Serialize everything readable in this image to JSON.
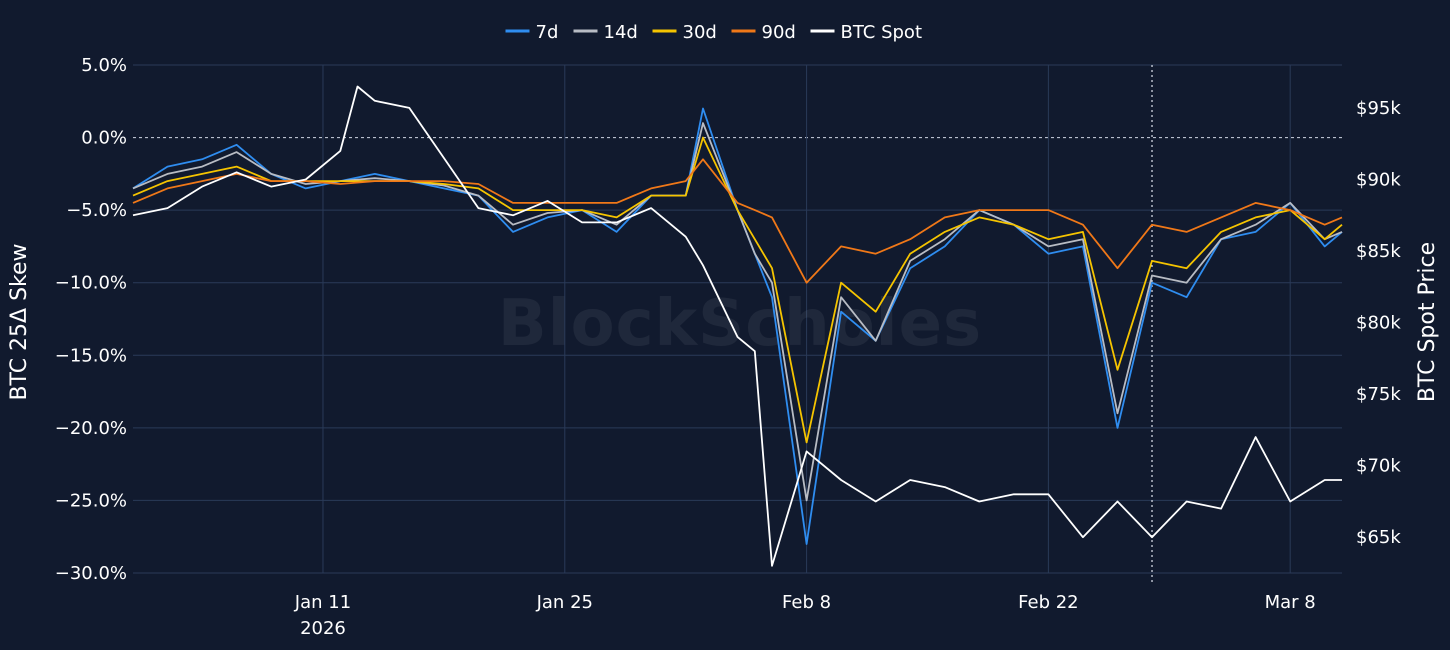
{
  "chart_data": {
    "type": "line",
    "watermark": "BlockScholes",
    "ylabel": "BTC 25Δ Skew",
    "y2label": "BTC Spot Price",
    "ylim": [
      -30,
      5
    ],
    "y2lim": [
      62500,
      98000
    ],
    "yticks": [
      "5.0%",
      "0.0%",
      "−5.0%",
      "−10.0%",
      "−15.0%",
      "−20.0%",
      "−25.0%",
      "−30.0%"
    ],
    "y2ticks": [
      "$95k",
      "$90k",
      "$85k",
      "$80k",
      "$75k",
      "$70k",
      "$65k"
    ],
    "xticks": [
      {
        "date": "2026-01-11",
        "label": "Jan 11",
        "sublabel": "2026"
      },
      {
        "date": "2026-01-25",
        "label": "Jan 25",
        "sublabel": ""
      },
      {
        "date": "2026-02-08",
        "label": "Feb 8",
        "sublabel": ""
      },
      {
        "date": "2026-02-22",
        "label": "Feb 22",
        "sublabel": ""
      },
      {
        "date": "2026-03-08",
        "label": "Mar 8",
        "sublabel": ""
      }
    ],
    "xrange": [
      "2025-12-31",
      "2026-03-11"
    ],
    "marker_date": "2026-02-28",
    "legend_position": "top-center",
    "grid": true,
    "series": [
      {
        "name": "7d",
        "axis": "left",
        "color": "#2f8df0",
        "x": [
          "2025-12-31",
          "2026-01-02",
          "2026-01-04",
          "2026-01-06",
          "2026-01-08",
          "2026-01-10",
          "2026-01-12",
          "2026-01-14",
          "2026-01-16",
          "2026-01-18",
          "2026-01-20",
          "2026-01-22",
          "2026-01-24",
          "2026-01-26",
          "2026-01-28",
          "2026-01-30",
          "2026-02-01",
          "2026-02-02",
          "2026-02-04",
          "2026-02-05",
          "2026-02-06",
          "2026-02-08",
          "2026-02-10",
          "2026-02-12",
          "2026-02-14",
          "2026-02-16",
          "2026-02-18",
          "2026-02-20",
          "2026-02-22",
          "2026-02-24",
          "2026-02-26",
          "2026-02-28",
          "2026-03-02",
          "2026-03-04",
          "2026-03-06",
          "2026-03-08",
          "2026-03-10",
          "2026-03-11"
        ],
        "values": [
          -3.5,
          -2.0,
          -1.5,
          -0.5,
          -2.5,
          -3.5,
          -3.0,
          -2.5,
          -3.0,
          -3.5,
          -4.0,
          -6.5,
          -5.5,
          -5.0,
          -6.5,
          -4.0,
          -4.0,
          2.0,
          -5.0,
          -8.0,
          -11.0,
          -28.0,
          -12.0,
          -14.0,
          -9.0,
          -7.5,
          -5.0,
          -6.0,
          -8.0,
          -7.5,
          -20.0,
          -10.0,
          -11.0,
          -7.0,
          -6.5,
          -4.5,
          -7.5,
          -6.5
        ]
      },
      {
        "name": "14d",
        "axis": "left",
        "color": "#b8bcc4",
        "x": [
          "2025-12-31",
          "2026-01-02",
          "2026-01-04",
          "2026-01-06",
          "2026-01-08",
          "2026-01-10",
          "2026-01-12",
          "2026-01-14",
          "2026-01-16",
          "2026-01-18",
          "2026-01-20",
          "2026-01-22",
          "2026-01-24",
          "2026-01-26",
          "2026-01-28",
          "2026-01-30",
          "2026-02-01",
          "2026-02-02",
          "2026-02-04",
          "2026-02-05",
          "2026-02-06",
          "2026-02-08",
          "2026-02-10",
          "2026-02-12",
          "2026-02-14",
          "2026-02-16",
          "2026-02-18",
          "2026-02-20",
          "2026-02-22",
          "2026-02-24",
          "2026-02-26",
          "2026-02-28",
          "2026-03-02",
          "2026-03-04",
          "2026-03-06",
          "2026-03-08",
          "2026-03-10",
          "2026-03-11"
        ],
        "values": [
          -3.5,
          -2.5,
          -2.0,
          -1.0,
          -2.5,
          -3.2,
          -3.0,
          -2.8,
          -3.0,
          -3.3,
          -4.0,
          -6.0,
          -5.2,
          -5.0,
          -6.0,
          -4.0,
          -4.0,
          1.0,
          -5.0,
          -8.0,
          -10.0,
          -25.0,
          -11.0,
          -14.0,
          -8.5,
          -7.0,
          -5.0,
          -6.0,
          -7.5,
          -7.0,
          -19.0,
          -9.5,
          -10.0,
          -7.0,
          -6.0,
          -4.5,
          -7.0,
          -6.5
        ]
      },
      {
        "name": "30d",
        "axis": "left",
        "color": "#f5c400",
        "x": [
          "2025-12-31",
          "2026-01-02",
          "2026-01-04",
          "2026-01-06",
          "2026-01-08",
          "2026-01-10",
          "2026-01-12",
          "2026-01-14",
          "2026-01-16",
          "2026-01-18",
          "2026-01-20",
          "2026-01-22",
          "2026-01-24",
          "2026-01-26",
          "2026-01-28",
          "2026-01-30",
          "2026-02-01",
          "2026-02-02",
          "2026-02-04",
          "2026-02-05",
          "2026-02-06",
          "2026-02-08",
          "2026-02-10",
          "2026-02-12",
          "2026-02-14",
          "2026-02-16",
          "2026-02-18",
          "2026-02-20",
          "2026-02-22",
          "2026-02-24",
          "2026-02-26",
          "2026-02-28",
          "2026-03-02",
          "2026-03-04",
          "2026-03-06",
          "2026-03-08",
          "2026-03-10",
          "2026-03-11"
        ],
        "values": [
          -4.0,
          -3.0,
          -2.5,
          -2.0,
          -3.0,
          -3.0,
          -3.0,
          -3.0,
          -3.0,
          -3.2,
          -3.5,
          -5.0,
          -5.0,
          -5.0,
          -5.5,
          -4.0,
          -4.0,
          0.0,
          -5.0,
          -7.0,
          -9.0,
          -21.0,
          -10.0,
          -12.0,
          -8.0,
          -6.5,
          -5.5,
          -6.0,
          -7.0,
          -6.5,
          -16.0,
          -8.5,
          -9.0,
          -6.5,
          -5.5,
          -5.0,
          -7.0,
          -6.0
        ]
      },
      {
        "name": "90d",
        "axis": "left",
        "color": "#f07818",
        "x": [
          "2025-12-31",
          "2026-01-02",
          "2026-01-04",
          "2026-01-06",
          "2026-01-08",
          "2026-01-10",
          "2026-01-12",
          "2026-01-14",
          "2026-01-16",
          "2026-01-18",
          "2026-01-20",
          "2026-01-22",
          "2026-01-24",
          "2026-01-26",
          "2026-01-28",
          "2026-01-30",
          "2026-02-01",
          "2026-02-02",
          "2026-02-04",
          "2026-02-05",
          "2026-02-06",
          "2026-02-08",
          "2026-02-10",
          "2026-02-12",
          "2026-02-14",
          "2026-02-16",
          "2026-02-18",
          "2026-02-20",
          "2026-02-22",
          "2026-02-24",
          "2026-02-26",
          "2026-02-28",
          "2026-03-02",
          "2026-03-04",
          "2026-03-06",
          "2026-03-08",
          "2026-03-10",
          "2026-03-11"
        ],
        "values": [
          -4.5,
          -3.5,
          -3.0,
          -2.5,
          -3.0,
          -3.0,
          -3.2,
          -3.0,
          -3.0,
          -3.0,
          -3.2,
          -4.5,
          -4.5,
          -4.5,
          -4.5,
          -3.5,
          -3.0,
          -1.5,
          -4.5,
          -5.0,
          -5.5,
          -10.0,
          -7.5,
          -8.0,
          -7.0,
          -5.5,
          -5.0,
          -5.0,
          -5.0,
          -6.0,
          -9.0,
          -6.0,
          -6.5,
          -5.5,
          -4.5,
          -5.0,
          -6.0,
          -5.5
        ]
      },
      {
        "name": "BTC Spot",
        "axis": "right",
        "color": "#ffffff",
        "x": [
          "2025-12-31",
          "2026-01-02",
          "2026-01-04",
          "2026-01-06",
          "2026-01-08",
          "2026-01-10",
          "2026-01-12",
          "2026-01-13",
          "2026-01-14",
          "2026-01-16",
          "2026-01-18",
          "2026-01-20",
          "2026-01-22",
          "2026-01-24",
          "2026-01-26",
          "2026-01-28",
          "2026-01-30",
          "2026-02-01",
          "2026-02-02",
          "2026-02-04",
          "2026-02-05",
          "2026-02-06",
          "2026-02-08",
          "2026-02-10",
          "2026-02-12",
          "2026-02-14",
          "2026-02-16",
          "2026-02-18",
          "2026-02-20",
          "2026-02-22",
          "2026-02-24",
          "2026-02-26",
          "2026-02-28",
          "2026-03-02",
          "2026-03-04",
          "2026-03-06",
          "2026-03-08",
          "2026-03-10",
          "2026-03-11"
        ],
        "values": [
          87500,
          88000,
          89500,
          90500,
          89500,
          90000,
          92000,
          96500,
          95500,
          95000,
          91500,
          88000,
          87500,
          88500,
          87000,
          87000,
          88000,
          86000,
          84000,
          79000,
          78000,
          63000,
          71000,
          69000,
          67500,
          69000,
          68500,
          67500,
          68000,
          68000,
          65000,
          67500,
          65000,
          67500,
          67000,
          72000,
          67500,
          69000,
          69000
        ]
      }
    ]
  }
}
